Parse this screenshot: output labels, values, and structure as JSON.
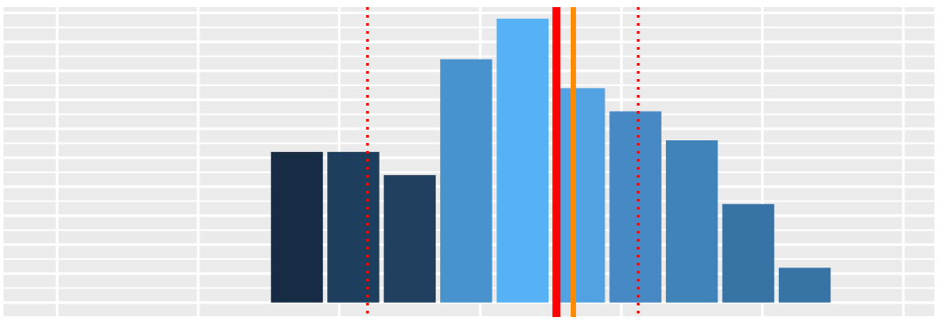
{
  "chart_data": {
    "type": "bar",
    "x": [
      -2,
      -1,
      0,
      1,
      2,
      3,
      4,
      5,
      6,
      7
    ],
    "values": [
      26,
      26,
      22,
      42,
      49,
      37,
      33,
      28,
      17,
      6
    ],
    "bar_colors": [
      "#162b44",
      "#1d3e5c",
      "#21405f",
      "#4893cd",
      "#56b1f5",
      "#51a1e3",
      "#4689c4",
      "#4083b9",
      "#3873a5",
      "#3873a5"
    ],
    "xlim": [
      -7.2,
      9.3
    ],
    "ylim": [
      -2.5,
      51
    ],
    "grid": true,
    "panel_color": "#ebebeb",
    "reference_lines": [
      {
        "kind": "solid",
        "x": 2.6,
        "color": "#ff0000"
      },
      {
        "kind": "solid",
        "x": 2.9,
        "color": "#ff8c00"
      },
      {
        "kind": "dotted",
        "x": -0.75,
        "color": "#ff0000"
      },
      {
        "kind": "dotted",
        "x": 4.05,
        "color": "#ff0000"
      }
    ]
  }
}
